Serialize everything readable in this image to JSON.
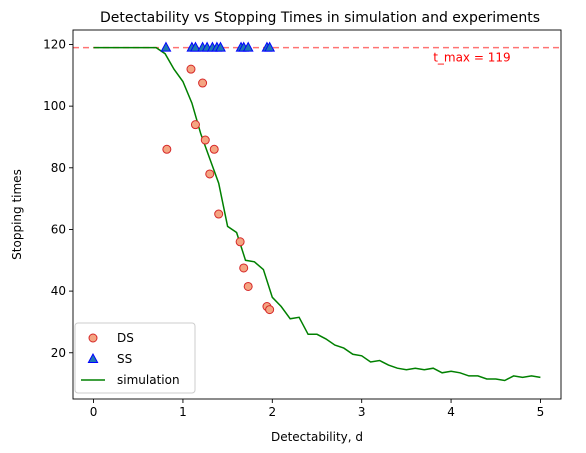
{
  "chart_data": {
    "type": "scatter",
    "title": "Detectability vs Stopping Times in simulation and experiments",
    "xlabel": "Detectability, d",
    "ylabel": "Stopping times",
    "xlim": [
      -0.23,
      5.23
    ],
    "ylim": [
      5.0,
      124.7
    ],
    "xticks": [
      0,
      1,
      2,
      3,
      4,
      5
    ],
    "yticks": [
      20,
      40,
      60,
      80,
      100,
      120
    ],
    "grid": false,
    "legend_position": "lower-left",
    "series": [
      {
        "name": "DS",
        "kind": "scatter",
        "marker": "circle",
        "face_color": "#f4a582",
        "edge_color": "#d62728",
        "x": [
          0.82,
          1.09,
          1.14,
          1.22,
          1.25,
          1.3,
          1.35,
          1.4,
          1.64,
          1.68,
          1.73,
          1.94,
          1.97
        ],
        "y": [
          86,
          112,
          94,
          107.5,
          89,
          78,
          86,
          65,
          56,
          47.5,
          41.5,
          35,
          34
        ]
      },
      {
        "name": "SS",
        "kind": "scatter",
        "marker": "triangle",
        "face_color": "#1f77b4",
        "edge_color": "#0000ff",
        "x": [
          0.81,
          1.1,
          1.14,
          1.22,
          1.27,
          1.33,
          1.38,
          1.42,
          1.65,
          1.68,
          1.73,
          1.94,
          1.97
        ],
        "y": [
          119,
          119,
          119,
          119,
          119,
          119,
          119,
          119,
          119,
          119,
          119,
          119,
          119
        ]
      },
      {
        "name": "simulation",
        "kind": "line",
        "color": "#008000",
        "x": [
          0,
          0.1,
          0.2,
          0.3,
          0.4,
          0.5,
          0.6,
          0.7,
          0.8,
          0.9,
          1.0,
          1.1,
          1.2,
          1.3,
          1.4,
          1.5,
          1.6,
          1.7,
          1.8,
          1.9,
          2.0,
          2.1,
          2.2,
          2.3,
          2.4,
          2.5,
          2.6,
          2.7,
          2.8,
          2.9,
          3.0,
          3.1,
          3.2,
          3.3,
          3.4,
          3.5,
          3.6,
          3.7,
          3.8,
          3.9,
          4.0,
          4.1,
          4.2,
          4.3,
          4.4,
          4.5,
          4.6,
          4.7,
          4.8,
          4.9,
          5.0
        ],
        "y": [
          119,
          119,
          119,
          119,
          119,
          119,
          119,
          119,
          117,
          112,
          108,
          101,
          91,
          83,
          75,
          61,
          59,
          50,
          49.5,
          47,
          38,
          35,
          31,
          31.5,
          26,
          26,
          24.5,
          22.5,
          21.5,
          19.5,
          19,
          17,
          17.5,
          16,
          15,
          14.5,
          15,
          14.5,
          15,
          13.5,
          14,
          13.5,
          12.5,
          12.5,
          11.5,
          11.5,
          11,
          12.5,
          12,
          12.5,
          12
        ]
      }
    ],
    "reference_line": {
      "y": 119,
      "style": "dashed",
      "color": "#ff0000",
      "label": "t_max = 119",
      "label_x": 3.8
    }
  }
}
